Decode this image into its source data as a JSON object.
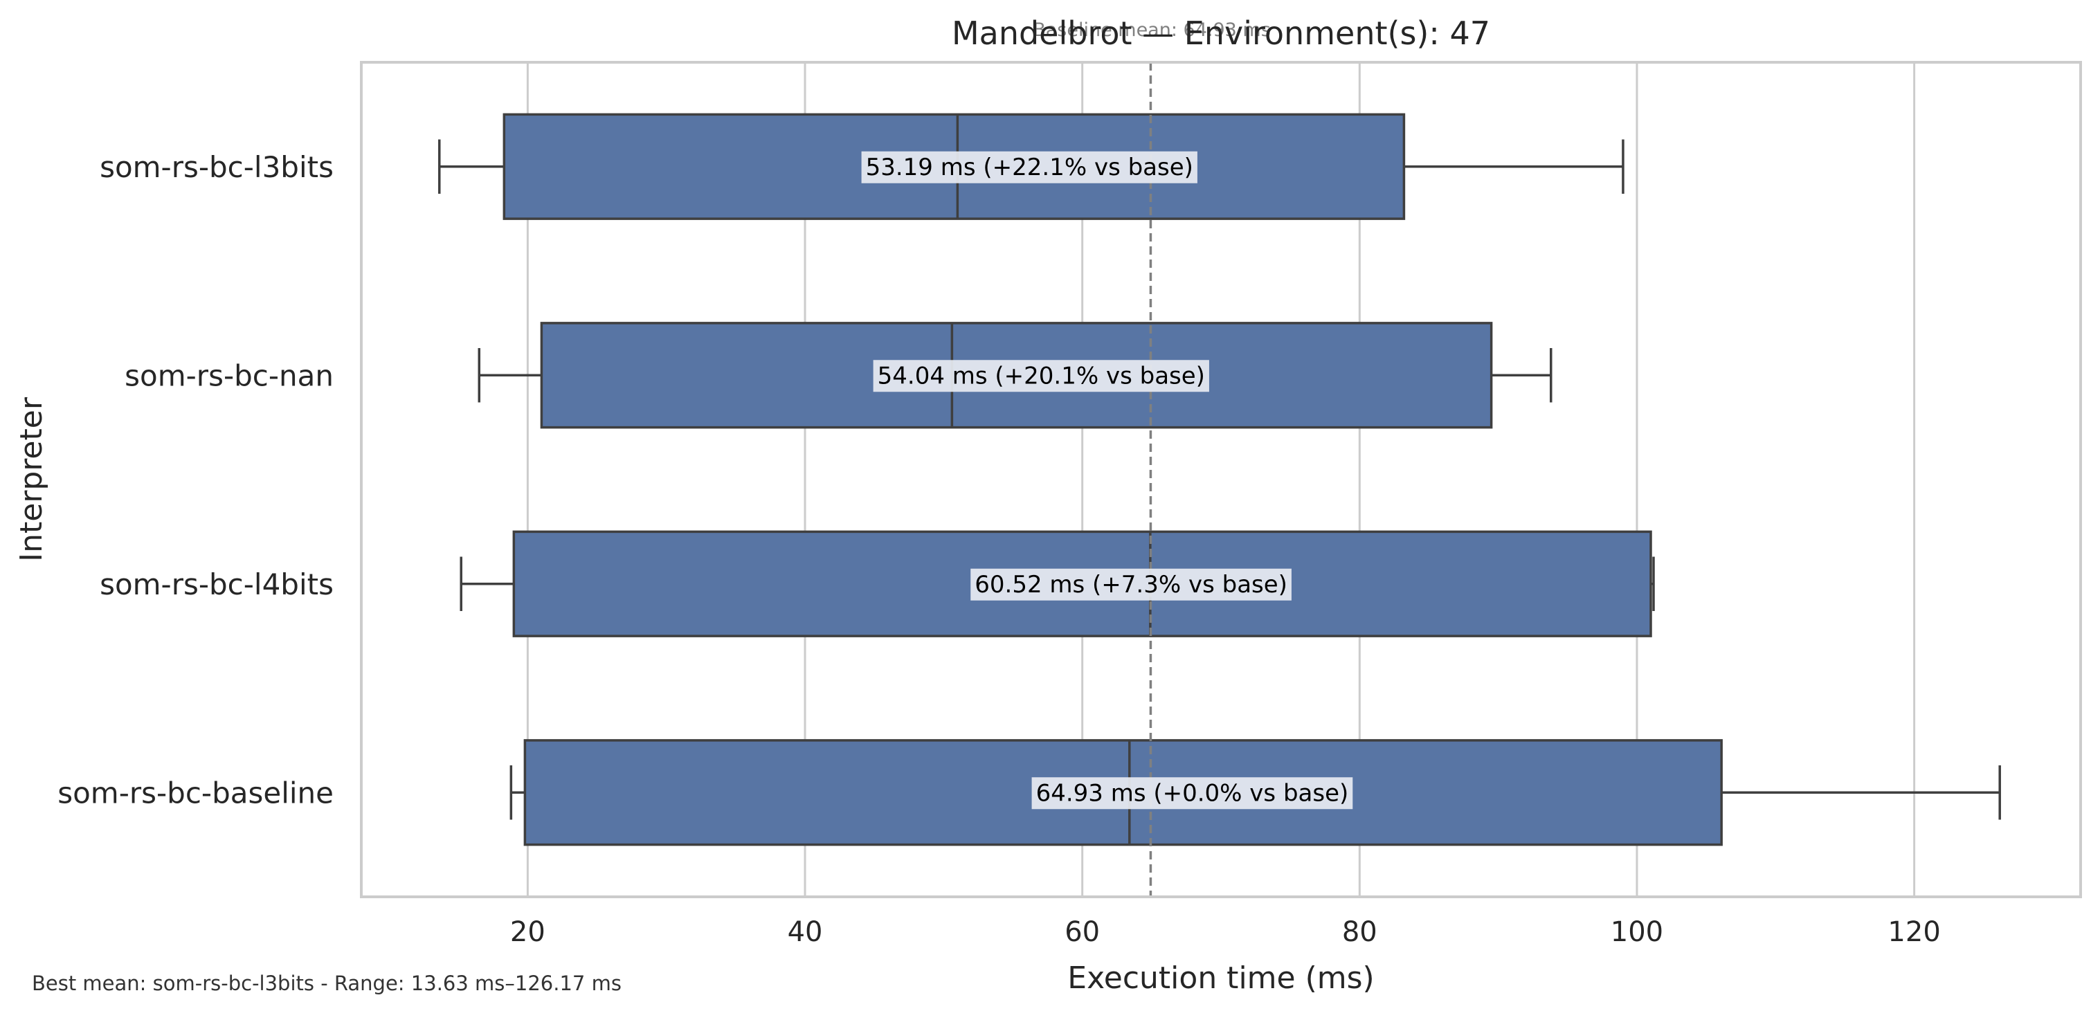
{
  "chart_data": {
    "type": "box",
    "orientation": "horizontal",
    "title": "Mandelbrot — Environment(s): 47",
    "subtitle": "Baseline mean: 64.93 ms",
    "xlabel": "Execution time (ms)",
    "ylabel": "Interpreter",
    "xlim": [
      8,
      132
    ],
    "xticks": [
      20,
      40,
      60,
      80,
      100,
      120
    ],
    "xtick_labels": [
      "20",
      "40",
      "60",
      "80",
      "100",
      "120"
    ],
    "grid": "vertical",
    "baseline_mean": 64.93,
    "categories": [
      "som-rs-bc-l3bits",
      "som-rs-bc-nan",
      "som-rs-bc-l4bits",
      "som-rs-bc-baseline"
    ],
    "boxes": [
      {
        "category": "som-rs-bc-l3bits",
        "whisker_low": 13.63,
        "q1": 18.3,
        "median": 51.0,
        "q3": 83.2,
        "whisker_high": 99.0,
        "mean": 53.19,
        "label": "53.19 ms  (+22.1% vs base)"
      },
      {
        "category": "som-rs-bc-nan",
        "whisker_low": 16.5,
        "q1": 21.0,
        "median": 50.6,
        "q3": 89.5,
        "whisker_high": 93.8,
        "mean": 54.04,
        "label": "54.04 ms  (+20.1% vs base)"
      },
      {
        "category": "som-rs-bc-l4bits",
        "whisker_low": 15.2,
        "q1": 19.0,
        "median": 64.9,
        "q3": 101.0,
        "whisker_high": 101.2,
        "mean": 60.52,
        "label": "60.52 ms  (+7.3% vs base)"
      },
      {
        "category": "som-rs-bc-baseline",
        "whisker_low": 18.8,
        "q1": 19.8,
        "median": 63.4,
        "q3": 106.1,
        "whisker_high": 126.17,
        "mean": 64.93,
        "label": "64.93 ms  (+0.0% vs base)"
      }
    ],
    "footer": "Best mean: som-rs-bc-l3bits - Range: 13.63 ms–126.17 ms",
    "colors": {
      "box_fill": "#5875a4",
      "box_edge": "#3f3f3f",
      "grid": "#cccccc",
      "frame": "#cccccc",
      "baseline_line": "#808080",
      "label_bg": "#e8ebf2",
      "text": "#262626"
    }
  }
}
